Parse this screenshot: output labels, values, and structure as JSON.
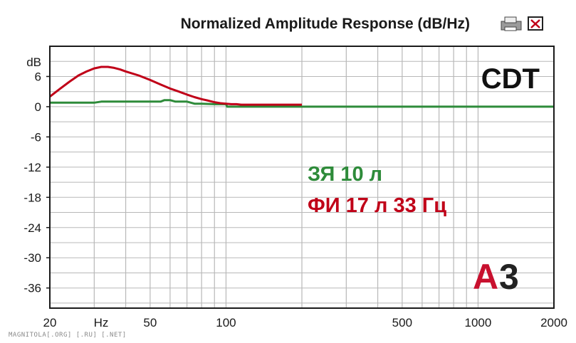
{
  "chart_data": {
    "type": "line",
    "title": "Normalized Amplitude Response (dB/Hz)",
    "y_unit_label": "dB",
    "x_unit_label": "Hz",
    "x_scale": "log",
    "xlim": [
      20,
      2000
    ],
    "ylim": [
      -40,
      12
    ],
    "y_ticks": [
      "6",
      "0",
      "-6",
      "-12",
      "-18",
      "-24",
      "-30",
      "-36"
    ],
    "x_ticks": [
      {
        "label": "20",
        "value": 20
      },
      {
        "label": "50",
        "value": 50
      },
      {
        "label": "100",
        "value": 100
      },
      {
        "label": "500",
        "value": 500
      },
      {
        "label": "1000",
        "value": 1000
      },
      {
        "label": "2000",
        "value": 2000
      }
    ],
    "grid": true,
    "annotation": "CDT",
    "series": [
      {
        "name": "ЗЯ 10 л",
        "color": "#2e8b3a",
        "x": [
          20,
          30,
          32,
          40,
          55,
          57,
          60,
          63,
          70,
          75,
          80,
          90,
          100,
          101,
          120,
          121,
          2000
        ],
        "y": [
          0.8,
          0.8,
          1.0,
          1.0,
          1.0,
          1.3,
          1.3,
          1.0,
          1.0,
          0.6,
          0.6,
          0.5,
          0.5,
          0.0,
          0.0,
          0.0,
          0.0
        ]
      },
      {
        "name": "ФИ 17 л 33 Гц",
        "color": "#c00018",
        "x": [
          20,
          22,
          24,
          26,
          28,
          30,
          32,
          34,
          36,
          38,
          40,
          45,
          50,
          55,
          60,
          65,
          70,
          75,
          80,
          85,
          90,
          95,
          100,
          105,
          110,
          115,
          120,
          200
        ],
        "y": [
          2.0,
          3.6,
          5.0,
          6.2,
          7.0,
          7.6,
          7.9,
          7.9,
          7.7,
          7.4,
          7.0,
          6.2,
          5.3,
          4.4,
          3.6,
          3.0,
          2.4,
          1.9,
          1.5,
          1.2,
          0.9,
          0.7,
          0.6,
          0.5,
          0.5,
          0.4,
          0.4,
          0.4
        ]
      }
    ]
  },
  "legend_items": [
    "ЗЯ 10 л",
    "ФИ 17 л 33 Гц"
  ],
  "logo": {
    "part1": "A",
    "part2": "3"
  },
  "watermark": "MAGNITOLA[.ORG] [.RU] [.NET]",
  "colors": {
    "frame": "#1a1a1a",
    "grid": "#b8b8b8",
    "zero_line": "#2e8b3a",
    "logo_red": "#c8102e"
  }
}
